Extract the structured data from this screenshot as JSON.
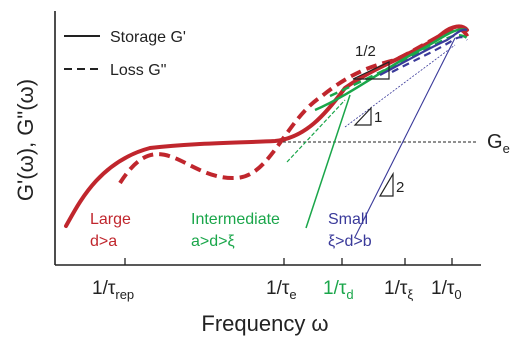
{
  "legend": {
    "storage_label": "Storage G'",
    "loss_label": "Loss G\""
  },
  "axes": {
    "y_label": "G'(ω), G\"(ω)",
    "x_label": "Frequency ω",
    "x_ticks": [
      {
        "prefix": "1/τ",
        "sub": "rep",
        "color": "#222222"
      },
      {
        "prefix": "1/τ",
        "sub": "e",
        "color": "#222222"
      },
      {
        "prefix": "1/τ",
        "sub": "d",
        "color": "#1aa64a"
      },
      {
        "prefix": "1/τ",
        "sub": "ξ",
        "color": "#222222"
      },
      {
        "prefix": "1/τ",
        "sub": "0",
        "color": "#222222"
      }
    ]
  },
  "plateau": {
    "label": "G",
    "sub": "e"
  },
  "slopes": [
    "1/2",
    "1",
    "2"
  ],
  "regimes": [
    {
      "name": "Large",
      "condition": "d>a",
      "color": "#c0262d"
    },
    {
      "name": "Intermediate",
      "condition": "a>d>ξ",
      "color": "#1aa64a"
    },
    {
      "name": "Small",
      "condition": "ξ>d>b",
      "color": "#3a3a9a"
    }
  ],
  "colors": {
    "red": "#c0262d",
    "green": "#1aa64a",
    "blue": "#3a3a9a",
    "axis": "#222222"
  }
}
